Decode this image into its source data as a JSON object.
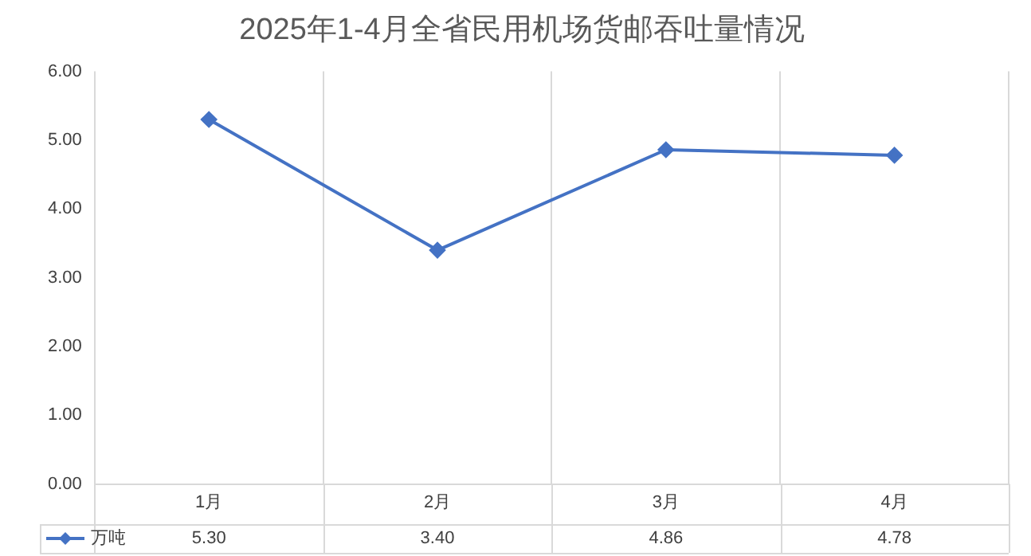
{
  "chart_data": {
    "type": "line",
    "title": "2025年1-4月全省民用机场货邮吞吐量情况",
    "categories": [
      "1月",
      "2月",
      "3月",
      "4月"
    ],
    "series": [
      {
        "name": "万吨",
        "color": "#4472c4",
        "values": [
          5.3,
          3.4,
          4.86,
          4.78
        ],
        "value_labels": [
          "5.30",
          "3.40",
          "4.86",
          "4.78"
        ]
      }
    ],
    "ylim": [
      0,
      6
    ],
    "yticks": [
      {
        "value": 0,
        "label": "0.00"
      },
      {
        "value": 1,
        "label": "1.00"
      },
      {
        "value": 2,
        "label": "2.00"
      },
      {
        "value": 3,
        "label": "3.00"
      },
      {
        "value": 4,
        "label": "4.00"
      },
      {
        "value": 5,
        "label": "5.00"
      },
      {
        "value": 6,
        "label": "6.00"
      }
    ],
    "grid": "x",
    "marker": "diamond",
    "line_style": "solid",
    "legend": "bottom"
  }
}
